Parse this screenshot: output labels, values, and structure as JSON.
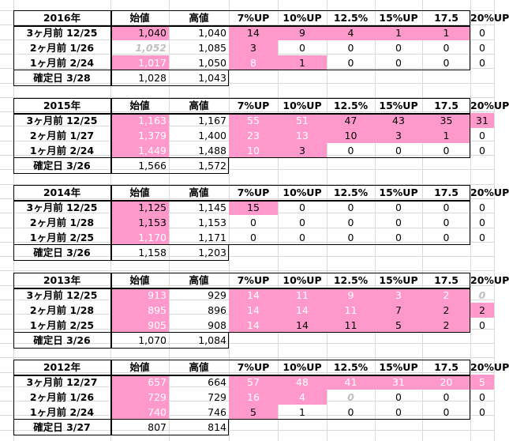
{
  "headers": [
    "始値",
    "高値",
    "7%UP",
    "10%UP",
    "12.5%",
    "15%UP",
    "17.5",
    "20%UP"
  ],
  "tables": [
    {
      "title": "2016年",
      "rows": [
        {
          "label": "3ヶ月前 12/25",
          "cells": [
            {
              "v": "1,040",
              "pink": true,
              "color": "black"
            },
            {
              "v": "1,040",
              "pink": false,
              "color": "black"
            },
            {
              "v": "14",
              "pink": true,
              "color": "black"
            },
            {
              "v": "9",
              "pink": true,
              "color": "black"
            },
            {
              "v": "4",
              "pink": true,
              "color": "black"
            },
            {
              "v": "1",
              "pink": true,
              "color": "black"
            },
            {
              "v": "1",
              "pink": true,
              "color": "black"
            },
            {
              "v": "0",
              "pink": false,
              "color": "black"
            }
          ]
        },
        {
          "label": "2ヶ月前 1/26",
          "cells": [
            {
              "v": "1,052",
              "pink": false,
              "color": "gray"
            },
            {
              "v": "1,085",
              "pink": false,
              "color": "black"
            },
            {
              "v": "3",
              "pink": true,
              "color": "black"
            },
            {
              "v": "0",
              "pink": false,
              "color": "black"
            },
            {
              "v": "0",
              "pink": false,
              "color": "black"
            },
            {
              "v": "0",
              "pink": false,
              "color": "black"
            },
            {
              "v": "0",
              "pink": false,
              "color": "black"
            },
            {
              "v": "0",
              "pink": false,
              "color": "black"
            }
          ]
        },
        {
          "label": "1ヶ月前 2/24",
          "cells": [
            {
              "v": "1,017",
              "pink": true,
              "color": "white"
            },
            {
              "v": "1,050",
              "pink": false,
              "color": "black"
            },
            {
              "v": "8",
              "pink": true,
              "color": "white"
            },
            {
              "v": "1",
              "pink": true,
              "color": "black"
            },
            {
              "v": "0",
              "pink": false,
              "color": "black"
            },
            {
              "v": "0",
              "pink": false,
              "color": "black"
            },
            {
              "v": "0",
              "pink": false,
              "color": "black"
            },
            {
              "v": "0",
              "pink": false,
              "color": "black"
            }
          ]
        },
        {
          "label": "確定日 3/28",
          "cells": [
            {
              "v": "1,028",
              "pink": false,
              "color": "black"
            },
            {
              "v": "1,043",
              "pink": false,
              "color": "black"
            }
          ]
        }
      ]
    },
    {
      "title": "2015年",
      "rows": [
        {
          "label": "3ヶ月前 12/25",
          "cells": [
            {
              "v": "1,163",
              "pink": true,
              "color": "white"
            },
            {
              "v": "1,167",
              "pink": false,
              "color": "black"
            },
            {
              "v": "55",
              "pink": true,
              "color": "white"
            },
            {
              "v": "51",
              "pink": true,
              "color": "white"
            },
            {
              "v": "47",
              "pink": true,
              "color": "black"
            },
            {
              "v": "43",
              "pink": true,
              "color": "black"
            },
            {
              "v": "35",
              "pink": true,
              "color": "black"
            },
            {
              "v": "31",
              "pink": true,
              "color": "black"
            }
          ]
        },
        {
          "label": "2ヶ月前 1/27",
          "cells": [
            {
              "v": "1,379",
              "pink": true,
              "color": "white"
            },
            {
              "v": "1,400",
              "pink": false,
              "color": "black"
            },
            {
              "v": "23",
              "pink": true,
              "color": "white"
            },
            {
              "v": "13",
              "pink": true,
              "color": "white"
            },
            {
              "v": "10",
              "pink": true,
              "color": "black"
            },
            {
              "v": "3",
              "pink": true,
              "color": "black"
            },
            {
              "v": "1",
              "pink": true,
              "color": "black"
            },
            {
              "v": "0",
              "pink": false,
              "color": "black"
            }
          ]
        },
        {
          "label": "1ヶ月前 2/24",
          "cells": [
            {
              "v": "1,449",
              "pink": true,
              "color": "white"
            },
            {
              "v": "1,488",
              "pink": false,
              "color": "black"
            },
            {
              "v": "10",
              "pink": true,
              "color": "white"
            },
            {
              "v": "3",
              "pink": true,
              "color": "black"
            },
            {
              "v": "0",
              "pink": false,
              "color": "black"
            },
            {
              "v": "0",
              "pink": false,
              "color": "black"
            },
            {
              "v": "0",
              "pink": false,
              "color": "black"
            },
            {
              "v": "0",
              "pink": false,
              "color": "black"
            }
          ]
        },
        {
          "label": "確定日 3/26",
          "cells": [
            {
              "v": "1,566",
              "pink": false,
              "color": "black"
            },
            {
              "v": "1,572",
              "pink": false,
              "color": "black"
            }
          ]
        }
      ]
    },
    {
      "title": "2014年",
      "rows": [
        {
          "label": "3ヶ月前 12/25",
          "cells": [
            {
              "v": "1,125",
              "pink": true,
              "color": "black"
            },
            {
              "v": "1,145",
              "pink": false,
              "color": "black"
            },
            {
              "v": "15",
              "pink": true,
              "color": "black"
            },
            {
              "v": "0",
              "pink": false,
              "color": "black"
            },
            {
              "v": "0",
              "pink": false,
              "color": "black"
            },
            {
              "v": "0",
              "pink": false,
              "color": "black"
            },
            {
              "v": "0",
              "pink": false,
              "color": "black"
            },
            {
              "v": "0",
              "pink": false,
              "color": "black"
            }
          ]
        },
        {
          "label": "2ヶ月前 1/28",
          "cells": [
            {
              "v": "1,153",
              "pink": true,
              "color": "black"
            },
            {
              "v": "1,153",
              "pink": false,
              "color": "black"
            },
            {
              "v": "0",
              "pink": false,
              "color": "black"
            },
            {
              "v": "0",
              "pink": false,
              "color": "black"
            },
            {
              "v": "0",
              "pink": false,
              "color": "black"
            },
            {
              "v": "0",
              "pink": false,
              "color": "black"
            },
            {
              "v": "0",
              "pink": false,
              "color": "black"
            },
            {
              "v": "0",
              "pink": false,
              "color": "black"
            }
          ]
        },
        {
          "label": "1ヶ月前 2/25",
          "cells": [
            {
              "v": "1,170",
              "pink": true,
              "color": "white"
            },
            {
              "v": "1,171",
              "pink": false,
              "color": "black"
            },
            {
              "v": "0",
              "pink": false,
              "color": "black"
            },
            {
              "v": "0",
              "pink": false,
              "color": "black"
            },
            {
              "v": "0",
              "pink": false,
              "color": "black"
            },
            {
              "v": "0",
              "pink": false,
              "color": "black"
            },
            {
              "v": "0",
              "pink": false,
              "color": "black"
            },
            {
              "v": "0",
              "pink": false,
              "color": "black"
            }
          ]
        },
        {
          "label": "確定日 3/26",
          "cells": [
            {
              "v": "1,158",
              "pink": false,
              "color": "black"
            },
            {
              "v": "1,203",
              "pink": false,
              "color": "black"
            }
          ]
        }
      ]
    },
    {
      "title": "2013年",
      "rows": [
        {
          "label": "3ヶ月前 12/25",
          "cells": [
            {
              "v": "913",
              "pink": true,
              "color": "white"
            },
            {
              "v": "929",
              "pink": false,
              "color": "black"
            },
            {
              "v": "14",
              "pink": true,
              "color": "white"
            },
            {
              "v": "11",
              "pink": true,
              "color": "white"
            },
            {
              "v": "9",
              "pink": true,
              "color": "white"
            },
            {
              "v": "3",
              "pink": true,
              "color": "white"
            },
            {
              "v": "2",
              "pink": true,
              "color": "white"
            },
            {
              "v": "0",
              "pink": false,
              "color": "gray"
            }
          ]
        },
        {
          "label": "2ヶ月前 1/28",
          "cells": [
            {
              "v": "895",
              "pink": true,
              "color": "white"
            },
            {
              "v": "896",
              "pink": false,
              "color": "black"
            },
            {
              "v": "14",
              "pink": true,
              "color": "white"
            },
            {
              "v": "14",
              "pink": true,
              "color": "white"
            },
            {
              "v": "11",
              "pink": true,
              "color": "white"
            },
            {
              "v": "7",
              "pink": true,
              "color": "black"
            },
            {
              "v": "2",
              "pink": true,
              "color": "black"
            },
            {
              "v": "2",
              "pink": true,
              "color": "black"
            }
          ]
        },
        {
          "label": "1ヶ月前 2/25",
          "cells": [
            {
              "v": "905",
              "pink": true,
              "color": "white"
            },
            {
              "v": "908",
              "pink": false,
              "color": "black"
            },
            {
              "v": "14",
              "pink": true,
              "color": "white"
            },
            {
              "v": "14",
              "pink": true,
              "color": "black"
            },
            {
              "v": "11",
              "pink": true,
              "color": "black"
            },
            {
              "v": "5",
              "pink": true,
              "color": "black"
            },
            {
              "v": "2",
              "pink": true,
              "color": "black"
            },
            {
              "v": "0",
              "pink": false,
              "color": "black"
            }
          ]
        },
        {
          "label": "確定日 3/26",
          "cells": [
            {
              "v": "1,070",
              "pink": false,
              "color": "black"
            },
            {
              "v": "1,084",
              "pink": false,
              "color": "black"
            }
          ]
        }
      ]
    },
    {
      "title": "2012年",
      "rows": [
        {
          "label": "3ヶ月前 12/27",
          "cells": [
            {
              "v": "657",
              "pink": true,
              "color": "white"
            },
            {
              "v": "664",
              "pink": false,
              "color": "black"
            },
            {
              "v": "57",
              "pink": true,
              "color": "white"
            },
            {
              "v": "48",
              "pink": true,
              "color": "white"
            },
            {
              "v": "41",
              "pink": true,
              "color": "white"
            },
            {
              "v": "31",
              "pink": true,
              "color": "white"
            },
            {
              "v": "20",
              "pink": true,
              "color": "white"
            },
            {
              "v": "5",
              "pink": true,
              "color": "white"
            }
          ]
        },
        {
          "label": "2ヶ月前 1/26",
          "cells": [
            {
              "v": "729",
              "pink": true,
              "color": "white"
            },
            {
              "v": "729",
              "pink": false,
              "color": "black"
            },
            {
              "v": "16",
              "pink": true,
              "color": "white"
            },
            {
              "v": "4",
              "pink": true,
              "color": "white"
            },
            {
              "v": "0",
              "pink": false,
              "color": "gray"
            },
            {
              "v": "0",
              "pink": false,
              "color": "black"
            },
            {
              "v": "0",
              "pink": false,
              "color": "black"
            },
            {
              "v": "0",
              "pink": false,
              "color": "black"
            }
          ]
        },
        {
          "label": "1ヶ月前 2/24",
          "cells": [
            {
              "v": "740",
              "pink": true,
              "color": "white"
            },
            {
              "v": "746",
              "pink": false,
              "color": "black"
            },
            {
              "v": "5",
              "pink": true,
              "color": "black"
            },
            {
              "v": "1",
              "pink": false,
              "color": "black"
            },
            {
              "v": "0",
              "pink": false,
              "color": "black"
            },
            {
              "v": "0",
              "pink": false,
              "color": "black"
            },
            {
              "v": "0",
              "pink": false,
              "color": "black"
            },
            {
              "v": "0",
              "pink": false,
              "color": "black"
            }
          ]
        },
        {
          "label": "確定日 3/27",
          "cells": [
            {
              "v": "807",
              "pink": false,
              "color": "black"
            },
            {
              "v": "814",
              "pink": false,
              "color": "black"
            }
          ]
        }
      ]
    }
  ]
}
